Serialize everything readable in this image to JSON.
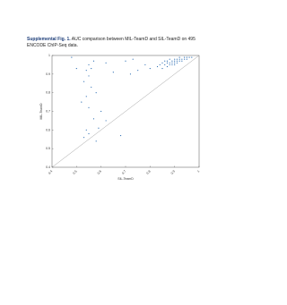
{
  "caption": {
    "label": "Supplemental Fig. 1.",
    "text": "AUC comparison between MIL-TeamD and SIL-TeamD on 495 ENCODE ChIP-Seq data."
  },
  "chart_data": {
    "type": "scatter",
    "x_label": "SIL-TeamD",
    "y_label": "MIL-TeamD",
    "xlim": [
      0.4,
      1
    ],
    "ylim": [
      0.4,
      1
    ],
    "xticks": [
      0.4,
      0.5,
      0.6,
      0.7,
      0.8,
      0.9,
      1
    ],
    "yticks": [
      0.4,
      0.5,
      0.6,
      0.7,
      0.8,
      0.9,
      1
    ],
    "series": [
      {
        "color": "#2e6fb4",
        "x": [
          0.83,
          0.84,
          0.85,
          0.85,
          0.86,
          0.86,
          0.87,
          0.87,
          0.87,
          0.88,
          0.88,
          0.88,
          0.89,
          0.89,
          0.89,
          0.9,
          0.9,
          0.9,
          0.9,
          0.91,
          0.91,
          0.91,
          0.92,
          0.92,
          0.92,
          0.93,
          0.93,
          0.94,
          0.94,
          0.95,
          0.95,
          0.96,
          0.97,
          0.8,
          0.78,
          0.75,
          0.72,
          0.7,
          0.65,
          0.62,
          0.57,
          0.55,
          0.56,
          0.54,
          0.55,
          0.53,
          0.56,
          0.58,
          0.54,
          0.52,
          0.55,
          0.6,
          0.62,
          0.57,
          0.54,
          0.53,
          0.58,
          0.68,
          0.73,
          0.5,
          0.48,
          0.59,
          0.55
        ],
        "values": [
          0.94,
          0.95,
          0.93,
          0.96,
          0.95,
          0.97,
          0.94,
          0.96,
          0.97,
          0.95,
          0.96,
          0.98,
          0.95,
          0.97,
          0.96,
          0.96,
          0.97,
          0.98,
          0.95,
          0.97,
          0.98,
          0.96,
          0.97,
          0.98,
          0.99,
          0.97,
          0.98,
          0.98,
          0.99,
          0.98,
          0.99,
          0.99,
          0.99,
          0.93,
          0.95,
          0.92,
          0.9,
          0.97,
          0.91,
          0.96,
          0.97,
          0.95,
          0.93,
          0.92,
          0.89,
          0.86,
          0.83,
          0.8,
          0.78,
          0.75,
          0.72,
          0.7,
          0.65,
          0.66,
          0.6,
          0.56,
          0.54,
          0.57,
          0.98,
          0.93,
          0.99,
          0.61,
          0.58
        ]
      }
    ]
  }
}
